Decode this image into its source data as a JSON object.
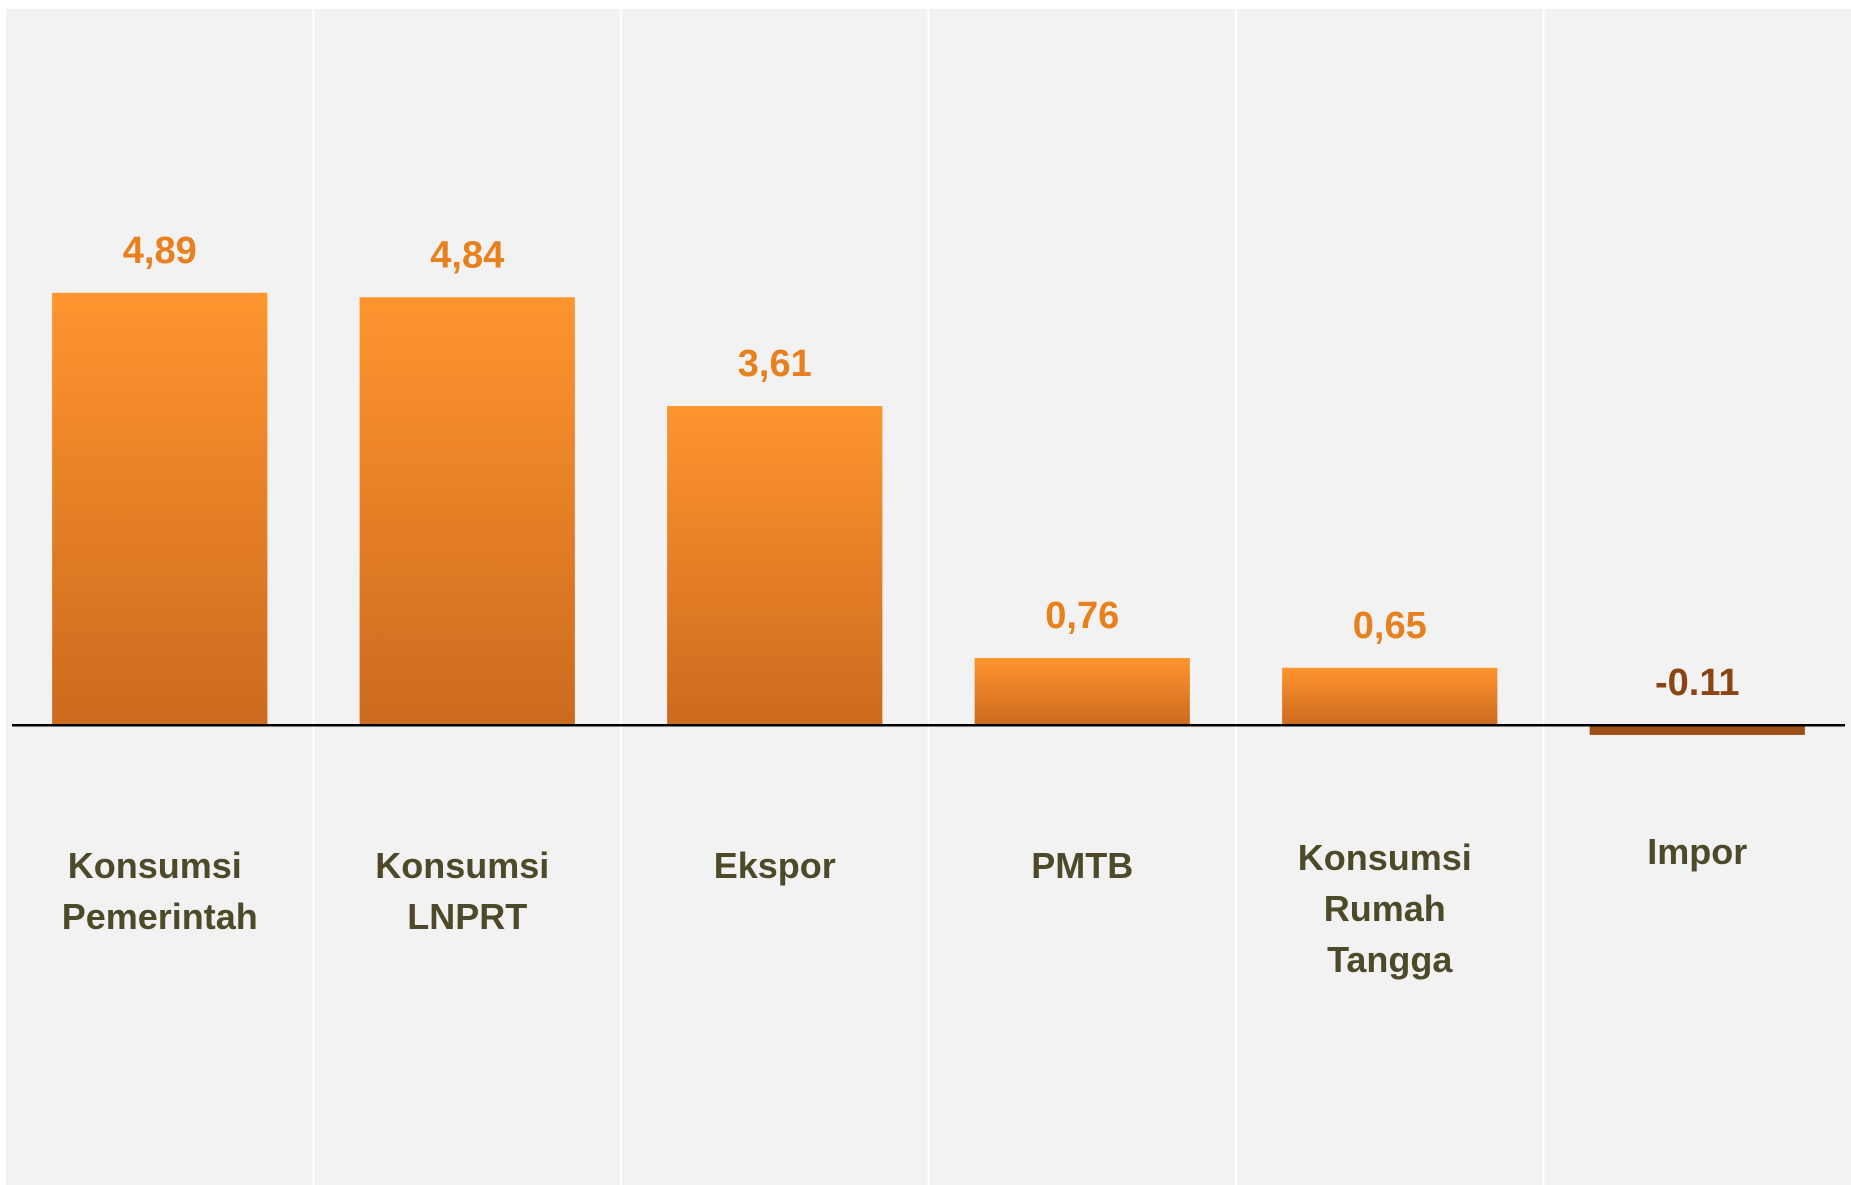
{
  "chart_data": {
    "type": "bar",
    "categories": [
      "Konsumsi Pemerintah",
      "Konsumsi LNPRT",
      "Ekspor",
      "PMTB",
      "Konsumsi Rumah Tangga",
      "Impor"
    ],
    "values": [
      4.89,
      4.84,
      3.61,
      0.76,
      0.65,
      -0.11
    ],
    "value_labels": [
      "4,89",
      "4,84",
      "3,61",
      "0,76",
      "0,65",
      "-0.11"
    ],
    "colors": [
      "#f28a2a",
      "#f28a2a",
      "#f28a2a",
      "#f28a2a",
      "#f28a2a",
      "#9c4f17"
    ],
    "ylim": [
      -5.2,
      8.1
    ]
  }
}
